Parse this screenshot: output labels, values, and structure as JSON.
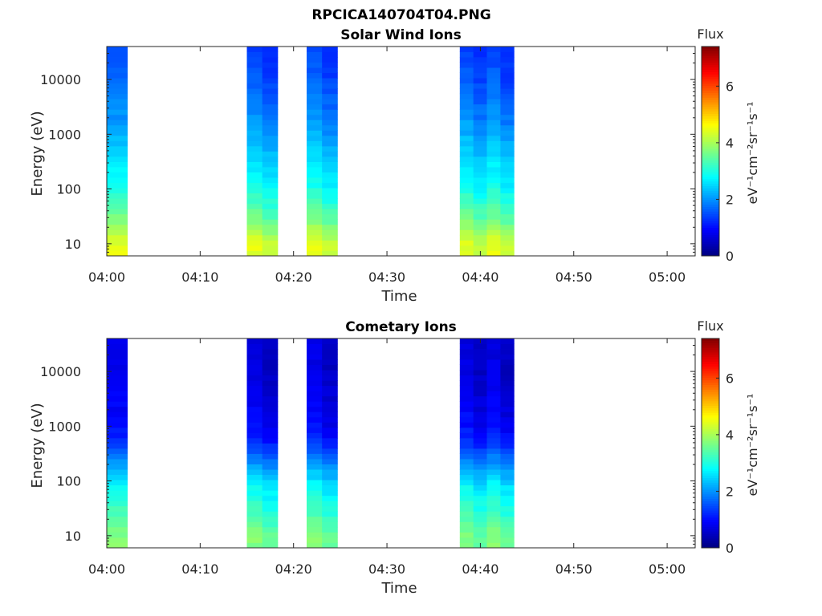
{
  "figure_title": "RPCICA140704T04.PNG",
  "chart_data": [
    {
      "type": "heatmap",
      "title": "Solar Wind Ions",
      "xlabel": "Time",
      "ylabel": "Energy (eV)",
      "x_ticks": [
        "04:00",
        "04:10",
        "04:20",
        "04:30",
        "04:40",
        "04:50",
        "05:00"
      ],
      "x_range_minutes": [
        0,
        63
      ],
      "y_ticks": [
        "10",
        "100",
        "1000",
        "10000"
      ],
      "y_scale": "log",
      "y_range": [
        6,
        40000
      ],
      "colorbar": {
        "title": "Flux",
        "label": "eV⁻¹cm⁻²sr⁻¹s⁻¹",
        "ticks": [
          "0",
          "2",
          "4",
          "6"
        ],
        "range": [
          0,
          7.4
        ],
        "colormap": "jet"
      },
      "data_blocks": [
        {
          "start_min": 0.0,
          "end_min": 2.2,
          "columns": 1
        },
        {
          "start_min": 15.0,
          "end_min": 18.3,
          "columns": 2
        },
        {
          "start_min": 21.4,
          "end_min": 24.7,
          "columns": 2
        },
        {
          "start_min": 37.8,
          "end_min": 43.6,
          "columns": 4
        }
      ],
      "flux_profile": {
        "energy": [
          10,
          30,
          80,
          150,
          300,
          600,
          1000,
          2000,
          5000,
          10000,
          20000,
          35000
        ],
        "value": [
          4.3,
          3.5,
          3.0,
          2.7,
          2.5,
          2.3,
          2.1,
          1.9,
          1.7,
          1.5,
          1.4,
          1.3
        ]
      }
    },
    {
      "type": "heatmap",
      "title": "Cometary Ions",
      "xlabel": "Time",
      "ylabel": "Energy (eV)",
      "x_ticks": [
        "04:00",
        "04:10",
        "04:20",
        "04:30",
        "04:40",
        "04:50",
        "05:00"
      ],
      "x_range_minutes": [
        0,
        63
      ],
      "y_ticks": [
        "10",
        "100",
        "1000",
        "10000"
      ],
      "y_scale": "log",
      "y_range": [
        6,
        40000
      ],
      "colorbar": {
        "title": "Flux",
        "label": "eV⁻¹cm⁻²sr⁻¹s⁻¹",
        "ticks": [
          "0",
          "2",
          "4",
          "6"
        ],
        "range": [
          0,
          7.4
        ],
        "colormap": "jet"
      },
      "data_blocks": [
        {
          "start_min": 0.0,
          "end_min": 2.2,
          "columns": 1
        },
        {
          "start_min": 15.0,
          "end_min": 18.3,
          "columns": 2
        },
        {
          "start_min": 21.4,
          "end_min": 24.7,
          "columns": 2
        },
        {
          "start_min": 37.8,
          "end_min": 43.6,
          "columns": 4
        }
      ],
      "flux_profile": {
        "energy": [
          10,
          30,
          80,
          150,
          300,
          600,
          1000,
          2000,
          5000,
          10000,
          20000,
          35000
        ],
        "value": [
          3.6,
          3.1,
          2.7,
          2.2,
          1.6,
          1.1,
          0.9,
          0.8,
          0.7,
          0.6,
          0.6,
          0.6
        ]
      }
    }
  ]
}
